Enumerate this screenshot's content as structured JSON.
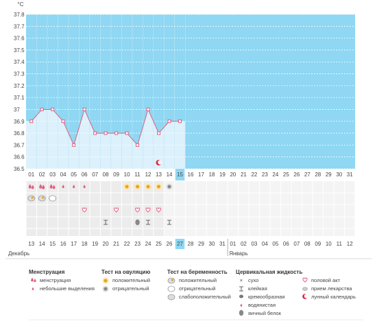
{
  "chart_data": {
    "type": "line",
    "y_unit": "°C",
    "ylim": [
      36.5,
      37.8
    ],
    "y_ticks": [
      "37.8",
      "37.7",
      "37.6",
      "37.5",
      "37.4",
      "37.3",
      "37.2",
      "37.1",
      "37",
      "36.9",
      "36.8",
      "36.7",
      "36.6",
      "36.5"
    ],
    "cycle_days": [
      "01",
      "02",
      "03",
      "04",
      "05",
      "06",
      "07",
      "08",
      "09",
      "10",
      "11",
      "12",
      "13",
      "14",
      "15",
      "16",
      "17",
      "18",
      "19",
      "20",
      "21",
      "22",
      "23",
      "24",
      "25",
      "26",
      "27",
      "28",
      "29",
      "30",
      "31"
    ],
    "current_cycle_day": 15,
    "temperatures": [
      36.9,
      37.0,
      37.0,
      36.9,
      36.7,
      37.0,
      36.8,
      36.8,
      36.8,
      36.8,
      36.7,
      37.0,
      36.8,
      36.9,
      36.9
    ],
    "calendar_dates": [
      {
        "label": "13",
        "weekend": false
      },
      {
        "label": "14",
        "weekend": false
      },
      {
        "label": "15",
        "weekend": false
      },
      {
        "label": "16",
        "weekend": false
      },
      {
        "label": "17",
        "weekend": true
      },
      {
        "label": "18",
        "weekend": true
      },
      {
        "label": "19",
        "weekend": false
      },
      {
        "label": "20",
        "weekend": false
      },
      {
        "label": "21",
        "weekend": false
      },
      {
        "label": "22",
        "weekend": false
      },
      {
        "label": "23",
        "weekend": false
      },
      {
        "label": "24",
        "weekend": true
      },
      {
        "label": "25",
        "weekend": true
      },
      {
        "label": "26",
        "weekend": false
      },
      {
        "label": "27",
        "weekend": false,
        "today": true
      },
      {
        "label": "28",
        "weekend": false
      },
      {
        "label": "29",
        "weekend": false
      },
      {
        "label": "30",
        "weekend": false
      },
      {
        "label": "31",
        "weekend": true
      },
      {
        "label": "01",
        "weekend": true,
        "month_start": true
      },
      {
        "label": "02",
        "weekend": false
      },
      {
        "label": "03",
        "weekend": false
      },
      {
        "label": "04",
        "weekend": false
      },
      {
        "label": "05",
        "weekend": false
      },
      {
        "label": "06",
        "weekend": false
      },
      {
        "label": "07",
        "weekend": true
      },
      {
        "label": "08",
        "weekend": true
      },
      {
        "label": "09",
        "weekend": false
      },
      {
        "label": "10",
        "weekend": false
      },
      {
        "label": "11",
        "weekend": false
      },
      {
        "label": "12",
        "weekend": false
      }
    ],
    "month_labels": [
      "Декабрь",
      "Январь"
    ],
    "marker_rows": {
      "menstruation": [
        2,
        3,
        2,
        1,
        1,
        1,
        0,
        0,
        0,
        0,
        0,
        0,
        0,
        0,
        0
      ],
      "ovulation_test": [
        0,
        0,
        0,
        0,
        0,
        0,
        0,
        0,
        0,
        1,
        1,
        1,
        1,
        2,
        0
      ],
      "pregnancy_test": [
        3,
        3,
        2,
        0,
        0,
        0,
        0,
        0,
        0,
        0,
        0,
        0,
        0,
        0,
        0
      ],
      "sex": [
        0,
        0,
        0,
        0,
        0,
        1,
        0,
        0,
        1,
        0,
        1,
        1,
        1,
        0,
        0
      ],
      "cervical": [
        0,
        0,
        0,
        0,
        0,
        0,
        0,
        2,
        0,
        0,
        5,
        2,
        0,
        2,
        0
      ]
    },
    "moon_day": 13
  },
  "legend": {
    "menstruation": {
      "title": "Менструация",
      "items": [
        "менструация",
        "небольшие выделения"
      ]
    },
    "ovulation": {
      "title": "Тест на овуляцию",
      "items": [
        "положительный",
        "отрицательный"
      ]
    },
    "pregnancy": {
      "title": "Тест на беременность",
      "items": [
        "положительный",
        "отрицательный",
        "слабоположительный"
      ]
    },
    "cervical": {
      "title": "Цервикальная жидкость",
      "items": [
        "сухо",
        "клейкая",
        "кремообразная",
        "водянистая",
        "яичный белок"
      ]
    },
    "other": {
      "items": [
        "половой акт",
        "прием лекарства",
        "лунный календарь"
      ]
    }
  },
  "colors": {
    "plot_bg": "#8fd7f3",
    "fill": "#dcf1fb",
    "line": "#e0607e",
    "today": "#8fd7f3",
    "weekend": "#e0203c",
    "grid": "#ffffff",
    "menstruation": "#e0607e"
  }
}
